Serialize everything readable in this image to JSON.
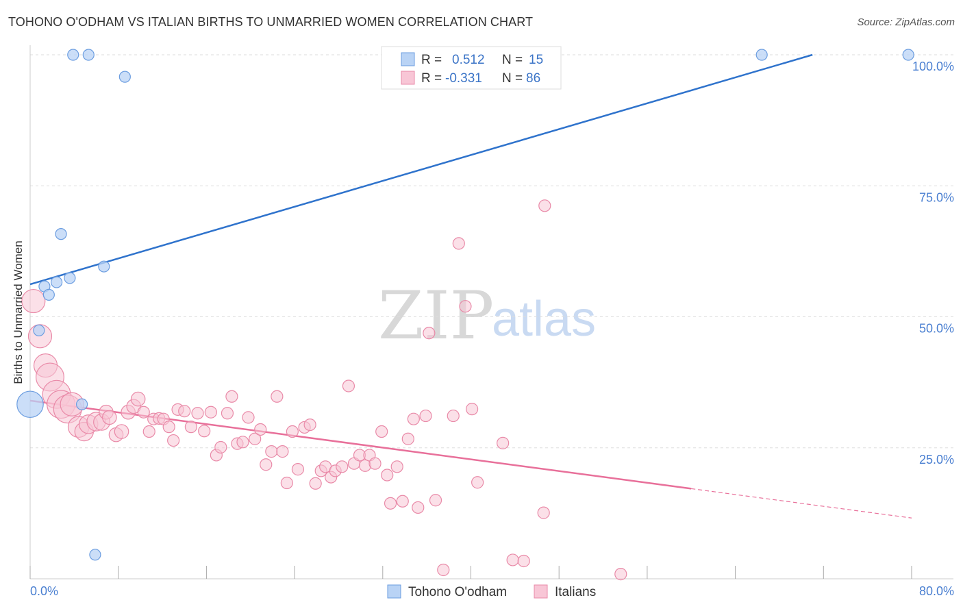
{
  "title": "TOHONO O'ODHAM VS ITALIAN BIRTHS TO UNMARRIED WOMEN CORRELATION CHART",
  "source": "Source: ZipAtlas.com",
  "watermark": {
    "zip": "ZIP",
    "atlas": "atlas"
  },
  "legend_top": [
    {
      "r_label": "R =",
      "r_value": "0.512",
      "n_label": "N =",
      "n_value": "15"
    },
    {
      "r_label": "R =",
      "r_value": "-0.331",
      "n_label": "N =",
      "n_value": "86"
    }
  ],
  "legend_bottom": [
    "Tohono O'odham",
    "Italians"
  ],
  "colors": {
    "series1_fill": "#b9d3f5",
    "series1_stroke": "#6b9de0",
    "series1_line": "#2f73cc",
    "series2_fill": "#f8c6d6",
    "series2_stroke": "#e98aa8",
    "series2_line": "#e8709a",
    "grid": "#dddddd",
    "tick_text": "#4a7fd1"
  },
  "chart_data": {
    "type": "scatter",
    "title": "TOHONO O'ODHAM VS ITALIAN BIRTHS TO UNMARRIED WOMEN CORRELATION CHART",
    "xlabel": "",
    "ylabel": "Births to Unmarried Women",
    "xlim": [
      0,
      80
    ],
    "ylim": [
      0,
      102
    ],
    "x_tick_labels": [
      "0.0%",
      "80.0%"
    ],
    "y_ticks": [
      25,
      50,
      75,
      100
    ],
    "y_tick_labels": [
      "25.0%",
      "50.0%",
      "75.0%",
      "100.0%"
    ],
    "grid": true,
    "legend_placement": "top-center and bottom",
    "series": [
      {
        "name": "Tohono O'odham",
        "r": 0.512,
        "n": 15,
        "points": [
          [
            3.9,
            100,
            1
          ],
          [
            5.3,
            100,
            1
          ],
          [
            66.4,
            100,
            1
          ],
          [
            79.7,
            100,
            1
          ],
          [
            8.6,
            95.8,
            1
          ],
          [
            2.8,
            65.8,
            1
          ],
          [
            6.7,
            59.6,
            1
          ],
          [
            3.6,
            57.4,
            1
          ],
          [
            2.4,
            56.6,
            1
          ],
          [
            1.3,
            55.8,
            1
          ],
          [
            1.7,
            54.2,
            1
          ],
          [
            0.8,
            47.4,
            1
          ],
          [
            0.0,
            33.3,
            2.4
          ],
          [
            4.7,
            33.3,
            1
          ],
          [
            5.9,
            4.6,
            1
          ]
        ],
        "trend": {
          "x0": 0,
          "y0": 56.2,
          "x1": 71.0,
          "y1": 100,
          "dashed_to": null
        }
      },
      {
        "name": "Italians",
        "r": -0.331,
        "n": 86,
        "points": [
          [
            0.3,
            53.0,
            2.0
          ],
          [
            0.9,
            46.3,
            2.0
          ],
          [
            1.4,
            40.7,
            2.0
          ],
          [
            1.8,
            38.5,
            2.4
          ],
          [
            2.4,
            35.2,
            2.4
          ],
          [
            2.8,
            33.3,
            2.4
          ],
          [
            3.4,
            32.4,
            2.4
          ],
          [
            3.8,
            33.3,
            2.0
          ],
          [
            4.4,
            29.0,
            1.8
          ],
          [
            4.9,
            28.1,
            1.6
          ],
          [
            5.3,
            29.5,
            1.6
          ],
          [
            6.0,
            30.0,
            1.6
          ],
          [
            6.5,
            29.9,
            1.4
          ],
          [
            6.9,
            31.8,
            1.2
          ],
          [
            7.2,
            30.8,
            1.2
          ],
          [
            7.8,
            27.5,
            1.2
          ],
          [
            8.3,
            28.1,
            1.2
          ],
          [
            8.9,
            31.8,
            1.2
          ],
          [
            9.4,
            32.9,
            1.2
          ],
          [
            9.8,
            34.3,
            1.2
          ],
          [
            10.3,
            31.8,
            1.0
          ],
          [
            10.8,
            28.1,
            1.0
          ],
          [
            11.2,
            30.5,
            1.0
          ],
          [
            11.7,
            30.6,
            1.0
          ],
          [
            12.1,
            30.5,
            1.0
          ],
          [
            12.6,
            29.0,
            1.0
          ],
          [
            13.0,
            26.4,
            1.0
          ],
          [
            13.4,
            32.3,
            1.0
          ],
          [
            14.0,
            32.0,
            1.0
          ],
          [
            14.6,
            29.0,
            1.0
          ],
          [
            15.2,
            31.6,
            1.0
          ],
          [
            15.8,
            28.2,
            1.0
          ],
          [
            16.4,
            31.8,
            1.0
          ],
          [
            16.9,
            23.6,
            1.0
          ],
          [
            17.3,
            25.1,
            1.0
          ],
          [
            17.9,
            31.6,
            1.0
          ],
          [
            18.3,
            34.8,
            1.0
          ],
          [
            18.8,
            25.8,
            1.0
          ],
          [
            19.3,
            26.1,
            1.0
          ],
          [
            19.8,
            30.8,
            1.0
          ],
          [
            20.4,
            26.7,
            1.0
          ],
          [
            20.9,
            28.5,
            1.0
          ],
          [
            21.4,
            21.8,
            1.0
          ],
          [
            21.9,
            24.3,
            1.0
          ],
          [
            22.4,
            34.8,
            1.0
          ],
          [
            22.9,
            24.3,
            1.0
          ],
          [
            23.3,
            18.3,
            1.0
          ],
          [
            23.8,
            28.1,
            1.0
          ],
          [
            24.3,
            20.9,
            1.0
          ],
          [
            24.9,
            28.9,
            1.0
          ],
          [
            25.4,
            29.4,
            1.0
          ],
          [
            25.9,
            18.2,
            1.0
          ],
          [
            26.4,
            20.6,
            1.0
          ],
          [
            26.8,
            21.4,
            1.0
          ],
          [
            27.3,
            19.4,
            1.0
          ],
          [
            27.7,
            20.6,
            1.0
          ],
          [
            28.3,
            21.4,
            1.0
          ],
          [
            28.9,
            36.8,
            1.0
          ],
          [
            29.4,
            22.0,
            1.0
          ],
          [
            29.9,
            23.6,
            1.0
          ],
          [
            30.4,
            21.6,
            1.0
          ],
          [
            30.8,
            23.6,
            1.0
          ],
          [
            31.3,
            22.0,
            1.0
          ],
          [
            31.9,
            28.1,
            1.0
          ],
          [
            32.4,
            19.8,
            1.0
          ],
          [
            32.7,
            14.4,
            1.0
          ],
          [
            33.3,
            21.4,
            1.0
          ],
          [
            33.8,
            14.8,
            1.0
          ],
          [
            34.3,
            26.7,
            1.0
          ],
          [
            34.8,
            30.5,
            1.0
          ],
          [
            35.2,
            13.6,
            1.0
          ],
          [
            35.9,
            31.1,
            1.0
          ],
          [
            36.2,
            46.9,
            1.0
          ],
          [
            36.8,
            15.0,
            1.0
          ],
          [
            37.5,
            1.7,
            1.0
          ],
          [
            38.4,
            31.1,
            1.0
          ],
          [
            38.9,
            64.0,
            1.0
          ],
          [
            39.5,
            52.0,
            1.0
          ],
          [
            40.1,
            32.4,
            1.0
          ],
          [
            40.6,
            18.4,
            1.0
          ],
          [
            42.9,
            25.9,
            1.0
          ],
          [
            43.8,
            3.6,
            1.0
          ],
          [
            44.8,
            3.4,
            1.0
          ],
          [
            46.6,
            12.6,
            1.0
          ],
          [
            46.7,
            71.2,
            1.0
          ],
          [
            53.6,
            0.9,
            1.0
          ]
        ],
        "trend": {
          "x0": 0,
          "y0": 34.0,
          "x1": 60.0,
          "y1": 17.2,
          "dashed_to": [
            80.0,
            11.6
          ]
        }
      }
    ]
  }
}
